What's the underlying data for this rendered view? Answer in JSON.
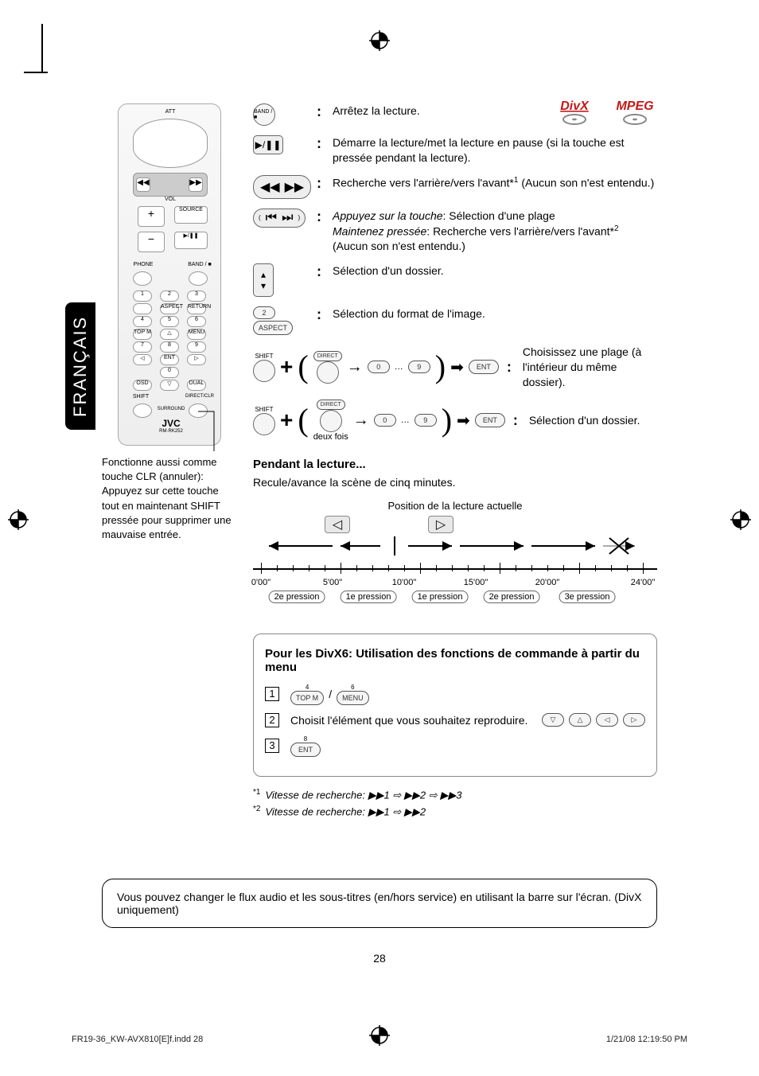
{
  "lang_tab": "FRANÇAIS",
  "discs": {
    "divx": "DivX",
    "mpeg": "MPEG"
  },
  "remote_labels": {
    "att": "ATT",
    "vol": "VOL",
    "source": "SOURCE",
    "phone": "PHONE",
    "band": "BAND",
    "aspect": "ASPECT",
    "return": "RETURN",
    "topm": "TOP M",
    "menu": "MENU",
    "ent": "ENT",
    "osd": "OSD",
    "dual": "DUAL",
    "shift": "SHIFT",
    "direct": "DIRECT/CLR",
    "surround": "SURROUND",
    "brand": "JVC",
    "model": "RM-RK252"
  },
  "left_note": "Fonctionne aussi comme touche CLR (annuler): Appuyez sur cette touche tout en maintenant SHIFT pressée pour supprimer une mauvaise entrée.",
  "rows": {
    "stop_icon": "BAND / ■",
    "stop": "Arrêtez la lecture.",
    "playpause_icon": "▶/❚❚",
    "playpause": "Démarre la lecture/met la lecture en pause (si la touche est pressée pendant la lecture).",
    "search_line1": "Recherche vers l'arrière/vers l'avant*",
    "search_sup1": "1",
    "search_line1b": " (Aucun son n'est entendu.)",
    "press_label": "Appuyez sur la touche",
    "press_text": ": Sélection d'une plage",
    "hold_label": "Maintenez pressée",
    "hold_text": ": Recherche vers l'arrière/vers l'avant*",
    "hold_sup": "2",
    "hold_tail": "(Aucun son n'est entendu.)",
    "folder": "Sélection d'un dossier.",
    "aspect_btn": "ASPECT",
    "aspect": "Sélection du format de l'image.",
    "shift_btn": "SHIFT",
    "direct_btn": "DIRECT",
    "ent_btn": "ENT",
    "track_select": "Choisissez une plage (à l'intérieur du même dossier).",
    "folder_select": "Sélection d'un dossier.",
    "twice": "deux fois"
  },
  "playback": {
    "title": "Pendant la lecture...",
    "subtitle": "Recule/avance la scène de cinq minutes.",
    "pos_label": "Position de la lecture actuelle",
    "times": [
      "0'00\"",
      "5'00\"",
      "10'00\"",
      "15'00\"",
      "20'00\"",
      "24'00\""
    ],
    "presses": [
      "2e pression",
      "1e pression",
      "1e pression",
      "2e pression",
      "3e pression"
    ]
  },
  "menu": {
    "title": "Pour les DivX6: Utilisation des fonctions de commande à partir du menu",
    "step1_a": "TOP M",
    "step1_b": "MENU",
    "step2": "Choisit l'élément que vous souhaitez reproduire.",
    "step3": "ENT"
  },
  "footnotes": {
    "f1_mark": "*1",
    "f1": "Vitesse de recherche: ▶▶1 ⇨ ▶▶2 ⇨ ▶▶3",
    "f2_mark": "*2",
    "f2": "Vitesse de recherche: ▶▶1 ⇨ ▶▶2"
  },
  "bottom_note": "Vous pouvez changer le flux audio et les sous-titres (en/hors service) en utilisant la barre sur l'écran. (DivX uniquement)",
  "page_num": "28",
  "footer": {
    "left": "FR19-36_KW-AVX810[E]f.indd   28",
    "right": "1/21/08   12:19:50 PM"
  },
  "colors": {
    "divx": "#c41818",
    "mpeg": "#c41818",
    "disc_grey": "#888888"
  }
}
